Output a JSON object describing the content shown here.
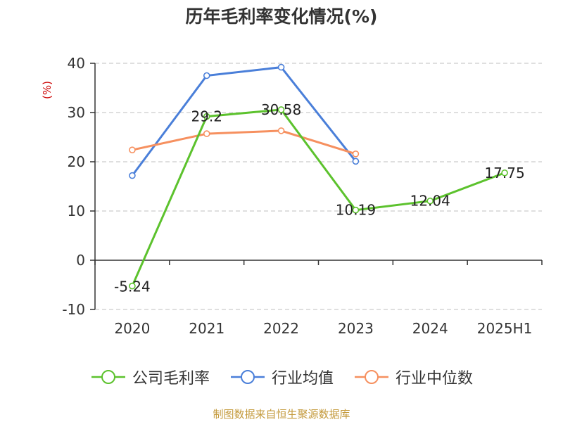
{
  "title": "历年毛利率变化情况(%)",
  "source": "制图数据来自恒生聚源数据库",
  "chart_data": {
    "type": "line",
    "title": "历年毛利率变化情况(%)",
    "ylabel": "(%)",
    "ylim": [
      -10,
      40
    ],
    "yticks": [
      40,
      30,
      20,
      10,
      0,
      -10
    ],
    "categories": [
      "2020",
      "2021",
      "2022",
      "2023",
      "2024",
      "2025H1"
    ],
    "grid": true,
    "legend_position": "bottom",
    "series": [
      {
        "name": "公司毛利率",
        "color": "#5cc22d",
        "values": [
          -5.24,
          29.2,
          30.58,
          10.19,
          12.04,
          17.75
        ],
        "labels": [
          "-5.24",
          "29.2",
          "30.58",
          "10.19",
          "12.04",
          "17.75"
        ]
      },
      {
        "name": "行业均值",
        "color": "#4a7fd9",
        "values": [
          17.2,
          37.5,
          39.2,
          20.1,
          null,
          null
        ]
      },
      {
        "name": "行业中位数",
        "color": "#f6905f",
        "values": [
          22.4,
          25.7,
          26.3,
          21.6,
          null,
          null
        ]
      }
    ]
  }
}
